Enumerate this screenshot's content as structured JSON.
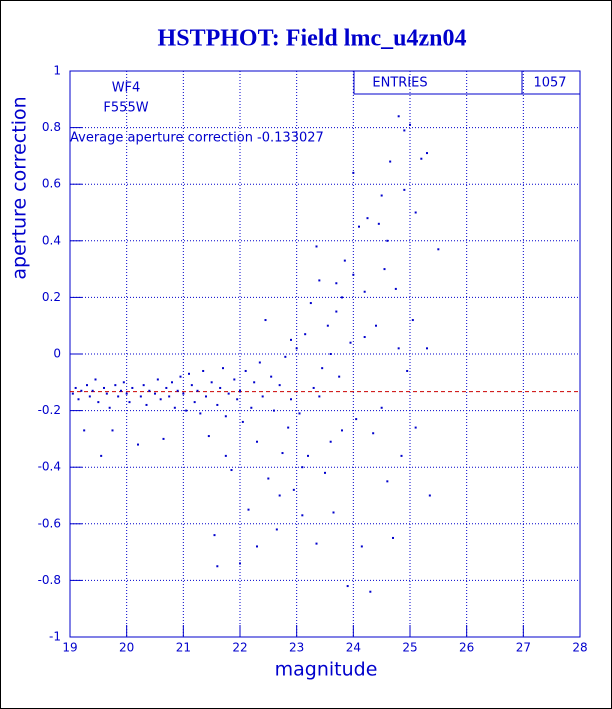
{
  "chart_data": {
    "type": "scatter",
    "title": "HSTPHOT: Field lmc_u4zn04",
    "xlabel": "magnitude",
    "ylabel": "aperture correction",
    "annotations": [
      "WF4",
      "F555W",
      "Average aperture correction -0.133027"
    ],
    "stats_label": "ENTRIES",
    "entries": 1057,
    "reference_line": -0.133027,
    "reference_color": "#cc0000",
    "color": "#0000cc",
    "grid": true,
    "xlim": [
      19,
      28
    ],
    "ylim": [
      -1,
      1
    ],
    "xticks": [
      19,
      20,
      21,
      22,
      23,
      24,
      25,
      26,
      27,
      28
    ],
    "yticks": [
      -1,
      -0.8,
      -0.6,
      -0.4,
      -0.2,
      0,
      0.2,
      0.4,
      0.6,
      0.8,
      1
    ],
    "x": [
      19.05,
      19.1,
      19.15,
      19.2,
      19.25,
      19.3,
      19.35,
      19.4,
      19.45,
      19.5,
      19.55,
      19.6,
      19.65,
      19.7,
      19.75,
      19.8,
      19.85,
      19.9,
      19.95,
      20.0,
      20.05,
      20.1,
      20.2,
      20.25,
      20.3,
      20.35,
      20.4,
      20.5,
      20.55,
      20.6,
      20.65,
      20.7,
      20.75,
      20.8,
      20.85,
      20.9,
      20.95,
      21.0,
      21.05,
      21.1,
      21.15,
      21.2,
      21.25,
      21.3,
      21.35,
      21.4,
      21.45,
      21.5,
      21.55,
      21.6,
      21.65,
      21.7,
      21.75,
      21.8,
      21.85,
      21.9,
      21.95,
      21.6,
      21.75,
      22.0,
      22.05,
      22.1,
      22.15,
      22.2,
      22.25,
      22.3,
      22.35,
      22.4,
      22.45,
      22.5,
      22.55,
      22.6,
      22.65,
      22.7,
      22.75,
      22.8,
      22.85,
      22.9,
      22.95,
      22.0,
      22.3,
      22.7,
      22.9,
      23.0,
      23.05,
      23.1,
      23.15,
      23.2,
      23.25,
      23.3,
      23.35,
      23.4,
      23.45,
      23.5,
      23.55,
      23.6,
      23.65,
      23.7,
      23.75,
      23.8,
      23.85,
      23.9,
      23.95,
      23.4,
      23.6,
      23.8,
      23.35,
      23.7,
      23.1,
      24.0,
      24.05,
      24.1,
      24.15,
      24.2,
      24.25,
      24.3,
      24.35,
      24.4,
      24.45,
      24.5,
      24.55,
      24.6,
      24.65,
      24.7,
      24.75,
      24.8,
      24.85,
      24.9,
      24.95,
      24.0,
      24.2,
      24.5,
      24.8,
      24.6,
      25.0,
      25.05,
      25.1,
      25.2,
      25.3,
      25.35,
      25.3,
      25.5,
      24.9,
      25.1
    ],
    "y": [
      -0.14,
      -0.12,
      -0.16,
      -0.13,
      -0.27,
      -0.11,
      -0.15,
      -0.13,
      -0.09,
      -0.17,
      -0.36,
      -0.12,
      -0.14,
      -0.19,
      -0.27,
      -0.11,
      -0.15,
      -0.13,
      -0.1,
      -0.14,
      -0.17,
      -0.12,
      -0.32,
      -0.15,
      -0.11,
      -0.18,
      -0.13,
      -0.14,
      -0.09,
      -0.16,
      -0.3,
      -0.12,
      -0.15,
      -0.1,
      -0.19,
      -0.13,
      -0.08,
      -0.14,
      -0.2,
      -0.07,
      -0.11,
      -0.17,
      -0.13,
      -0.21,
      -0.06,
      -0.15,
      -0.29,
      -0.1,
      -0.64,
      -0.18,
      -0.12,
      -0.05,
      -0.22,
      -0.14,
      -0.41,
      -0.09,
      -0.16,
      -0.75,
      -0.36,
      -0.13,
      -0.24,
      -0.06,
      -0.55,
      -0.19,
      -0.1,
      -0.31,
      -0.03,
      -0.15,
      0.12,
      -0.44,
      -0.08,
      -0.2,
      -0.62,
      -0.11,
      -0.35,
      -0.01,
      -0.26,
      0.05,
      -0.48,
      -0.74,
      -0.68,
      -0.5,
      -0.16,
      0.02,
      -0.21,
      -0.57,
      0.07,
      -0.36,
      0.18,
      -0.12,
      -0.67,
      0.26,
      -0.05,
      -0.42,
      0.1,
      -0.31,
      -0.56,
      0.15,
      -0.08,
      -0.27,
      0.33,
      -0.82,
      0.04,
      -0.15,
      0.0,
      0.2,
      0.38,
      0.25,
      -0.4,
      0.64,
      -0.23,
      0.45,
      -0.68,
      0.06,
      0.48,
      -0.84,
      -0.28,
      0.1,
      0.46,
      -0.19,
      0.3,
      -0.45,
      0.68,
      -0.65,
      0.23,
      0.84,
      -0.36,
      0.58,
      -0.06,
      0.28,
      0.22,
      0.56,
      0.02,
      0.4,
      0.81,
      0.12,
      -0.26,
      0.69,
      0.71,
      -0.5,
      0.02,
      0.37,
      0.79,
      0.5
    ]
  }
}
